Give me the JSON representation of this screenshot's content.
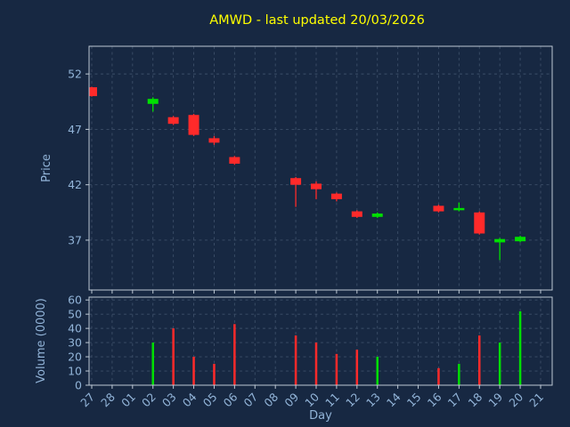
{
  "colors": {
    "background": "#172842",
    "title": "#ffff00",
    "label": "#92b4d8",
    "grid": "#3c4e68",
    "spine": "#bdc8d4",
    "up": "#00e000",
    "down": "#ff2a2a"
  },
  "chart_data": {
    "type": "candlestick",
    "title": "AMWD - last updated 20/03/2026",
    "xlabel": "Day",
    "price_ylabel": "Price",
    "volume_ylabel": "Volume (0000)",
    "x_ticks": [
      "27",
      "28",
      "01",
      "02",
      "03",
      "04",
      "05",
      "06",
      "07",
      "08",
      "09",
      "10",
      "11",
      "12",
      "13",
      "14",
      "15",
      "16",
      "17",
      "18",
      "19",
      "20",
      "21"
    ],
    "price_yticks": [
      37,
      42,
      47,
      52
    ],
    "price_ylim": [
      32.5,
      54.5
    ],
    "volume_yticks": [
      0,
      10,
      20,
      30,
      40,
      50,
      60
    ],
    "volume_ylim": [
      0,
      62
    ],
    "grid": true,
    "candles": [
      {
        "x": 0,
        "day": "27",
        "open": 50.8,
        "high": 50.85,
        "low": 49.95,
        "close": 50.0,
        "volume": 0
      },
      {
        "x": 3,
        "day": "02",
        "open": 49.3,
        "high": 49.9,
        "low": 48.6,
        "close": 49.75,
        "volume": 30
      },
      {
        "x": 4,
        "day": "03",
        "open": 48.1,
        "high": 48.2,
        "low": 47.4,
        "close": 47.5,
        "volume": 40
      },
      {
        "x": 5,
        "day": "04",
        "open": 48.3,
        "high": 48.4,
        "low": 46.4,
        "close": 46.5,
        "volume": 20
      },
      {
        "x": 6,
        "day": "05",
        "open": 46.2,
        "high": 46.4,
        "low": 45.6,
        "close": 45.8,
        "volume": 15
      },
      {
        "x": 7,
        "day": "06",
        "open": 44.5,
        "high": 44.6,
        "low": 43.8,
        "close": 43.9,
        "volume": 43
      },
      {
        "x": 10,
        "day": "09",
        "open": 42.6,
        "high": 42.7,
        "low": 40.0,
        "close": 42.0,
        "volume": 35
      },
      {
        "x": 11,
        "day": "10",
        "open": 42.1,
        "high": 42.3,
        "low": 40.7,
        "close": 41.6,
        "volume": 30
      },
      {
        "x": 12,
        "day": "11",
        "open": 41.2,
        "high": 41.3,
        "low": 40.5,
        "close": 40.7,
        "volume": 22
      },
      {
        "x": 13,
        "day": "12",
        "open": 39.6,
        "high": 39.7,
        "low": 39.0,
        "close": 39.1,
        "volume": 25
      },
      {
        "x": 14,
        "day": "13",
        "open": 39.1,
        "high": 39.5,
        "low": 39.0,
        "close": 39.4,
        "volume": 20
      },
      {
        "x": 17,
        "day": "16",
        "open": 40.1,
        "high": 40.2,
        "low": 39.5,
        "close": 39.6,
        "volume": 12
      },
      {
        "x": 18,
        "day": "17",
        "open": 39.7,
        "high": 40.4,
        "low": 39.6,
        "close": 39.9,
        "volume": 15
      },
      {
        "x": 19,
        "day": "18",
        "open": 39.5,
        "high": 39.6,
        "low": 37.5,
        "close": 37.6,
        "volume": 35
      },
      {
        "x": 20,
        "day": "19",
        "open": 36.8,
        "high": 37.2,
        "low": 35.2,
        "close": 37.1,
        "volume": 30
      },
      {
        "x": 21,
        "day": "20",
        "open": 36.9,
        "high": 37.4,
        "low": 36.8,
        "close": 37.3,
        "volume": 52
      }
    ]
  }
}
